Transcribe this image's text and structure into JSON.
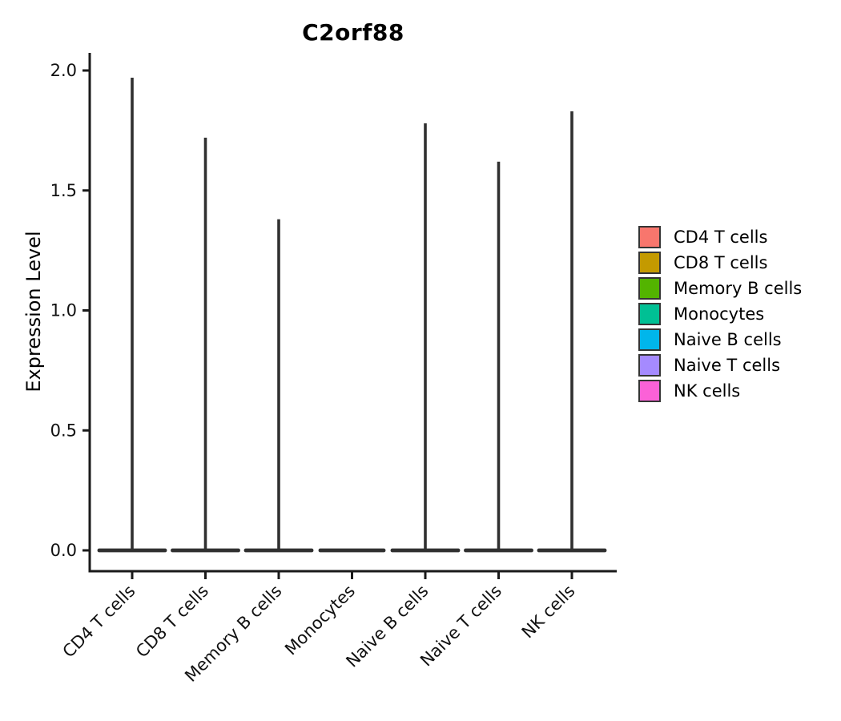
{
  "chart_data": {
    "type": "violin",
    "title": "C2orf88",
    "ylabel": "Expression Level",
    "xlabel": "",
    "categories": [
      "CD4 T cells",
      "CD8 T cells",
      "Memory B cells",
      "Monocytes",
      "Naive B cells",
      "Naive T cells",
      "NK cells"
    ],
    "series": [
      {
        "name": "CD4 T cells",
        "color": "#F8766D",
        "max_expression": 1.97,
        "bulk_at": 0.0
      },
      {
        "name": "CD8 T cells",
        "color": "#C49A00",
        "max_expression": 1.72,
        "bulk_at": 0.0
      },
      {
        "name": "Memory B cells",
        "color": "#53B400",
        "max_expression": 1.38,
        "bulk_at": 0.0
      },
      {
        "name": "Monocytes",
        "color": "#00C094",
        "max_expression": 0.0,
        "bulk_at": 0.0
      },
      {
        "name": "Naive B cells",
        "color": "#00B6EB",
        "max_expression": 1.78,
        "bulk_at": 0.0
      },
      {
        "name": "Naive T cells",
        "color": "#A58AFF",
        "max_expression": 1.62,
        "bulk_at": 0.0
      },
      {
        "name": "NK cells",
        "color": "#FB61D7",
        "max_expression": 1.83,
        "bulk_at": 0.0
      }
    ],
    "y_ticks": [
      "0.0",
      "0.5",
      "1.0",
      "1.5",
      "2.0"
    ],
    "ylim": [
      0,
      2.07
    ],
    "grid": false,
    "legend_position": "right",
    "violin_outline_color": "#303030"
  }
}
